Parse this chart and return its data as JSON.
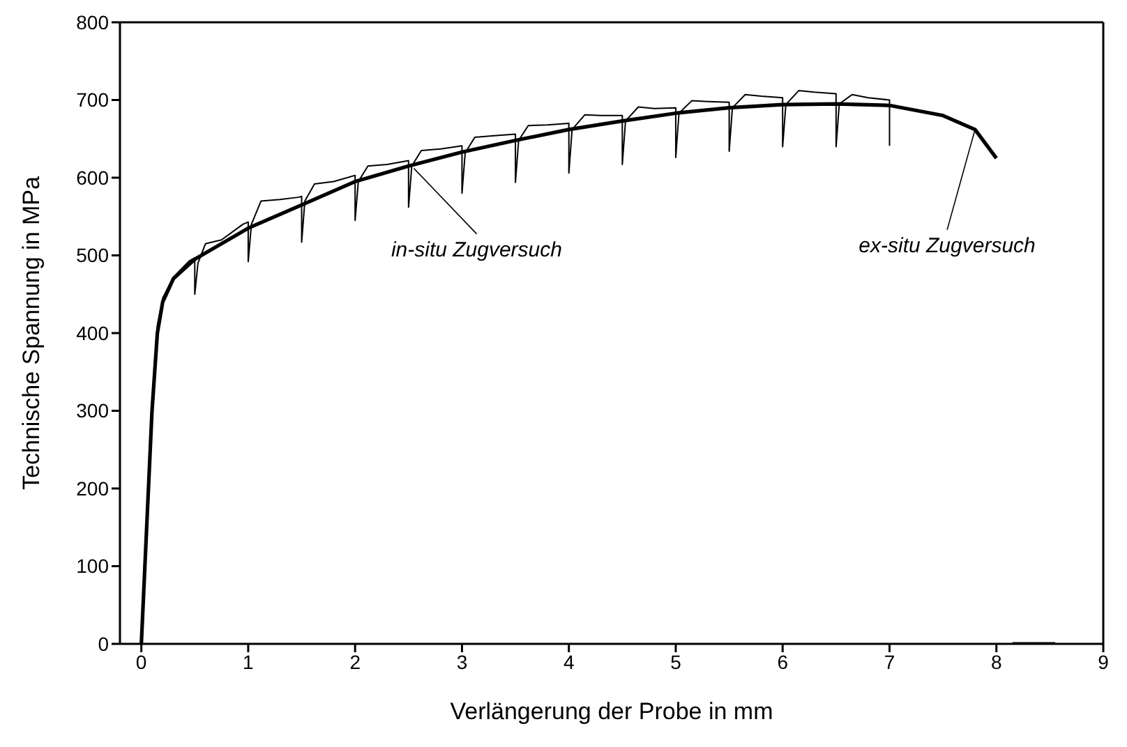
{
  "chart_data": {
    "type": "line",
    "xlabel": "Verlängerung der Probe in mm",
    "ylabel": "Technische Spannung in MPa",
    "xlim": [
      -0.2,
      9
    ],
    "xticks": [
      0,
      1,
      2,
      3,
      4,
      5,
      6,
      7,
      8,
      9
    ],
    "ylim": [
      0,
      800
    ],
    "yticks": [
      0,
      100,
      200,
      300,
      400,
      500,
      600,
      700,
      800
    ],
    "marker": "none",
    "line_style": "solid",
    "series": [
      {
        "color": "#000000",
        "x": [
          0,
          0.05,
          0.1,
          0.15,
          0.2,
          0.3,
          0.45,
          0.5,
          0.5,
          0.53,
          0.6,
          0.75,
          0.95,
          1.0,
          1.0,
          1.03,
          1.12,
          1.3,
          1.48,
          1.5,
          1.5,
          1.53,
          1.62,
          1.8,
          2.0,
          2.0,
          2.03,
          2.12,
          2.3,
          2.5,
          2.5,
          2.53,
          2.62,
          2.8,
          3.0,
          3.0,
          3.03,
          3.12,
          3.3,
          3.5,
          3.5,
          3.53,
          3.62,
          3.8,
          4.0,
          4.0,
          4.03,
          4.15,
          4.3,
          4.5,
          4.5,
          4.53,
          4.65,
          4.8,
          5.0,
          5.0,
          5.03,
          5.15,
          5.3,
          5.5,
          5.5,
          5.53,
          5.65,
          5.8,
          6.0,
          6.0,
          6.03,
          6.15,
          6.3,
          6.5,
          6.5,
          6.53,
          6.65,
          6.8,
          7.0,
          7.0
        ],
        "values": [
          0,
          150,
          310,
          410,
          445,
          472,
          493,
          497,
          450,
          490,
          515,
          520,
          540,
          543,
          492,
          540,
          570,
          572,
          575,
          576,
          517,
          570,
          592,
          595,
          603,
          545,
          595,
          615,
          617,
          622,
          562,
          615,
          635,
          637,
          641,
          580,
          632,
          652,
          654,
          656,
          594,
          648,
          667,
          668,
          670,
          606,
          662,
          681,
          680,
          680,
          617,
          673,
          691,
          689,
          690,
          626,
          683,
          699,
          698,
          697,
          634,
          690,
          707,
          705,
          703,
          640,
          694,
          712,
          710,
          708,
          640,
          695,
          707,
          703,
          700,
          641
        ]
      },
      {
        "color": "#000000",
        "x": [
          0,
          0.05,
          0.1,
          0.15,
          0.2,
          0.3,
          0.5,
          1,
          1.5,
          2,
          2.5,
          3,
          3.5,
          4,
          4.5,
          5,
          5.5,
          6,
          6.5,
          7,
          7.5,
          7.8,
          8,
          8.05,
          8.15,
          8.55
        ],
        "values": [
          0,
          150,
          300,
          400,
          440,
          470,
          495,
          535,
          565,
          595,
          615,
          633,
          648,
          662,
          673,
          683,
          690,
          694,
          695,
          693,
          680,
          662,
          625,
          null,
          0,
          0
        ]
      }
    ],
    "annotations": [
      {
        "text": "in-situ Zugversuch",
        "x": 2.55,
        "y": 612
      },
      {
        "text": "ex-situ Zugversuch",
        "x": 7.8,
        "y": 662
      }
    ]
  }
}
